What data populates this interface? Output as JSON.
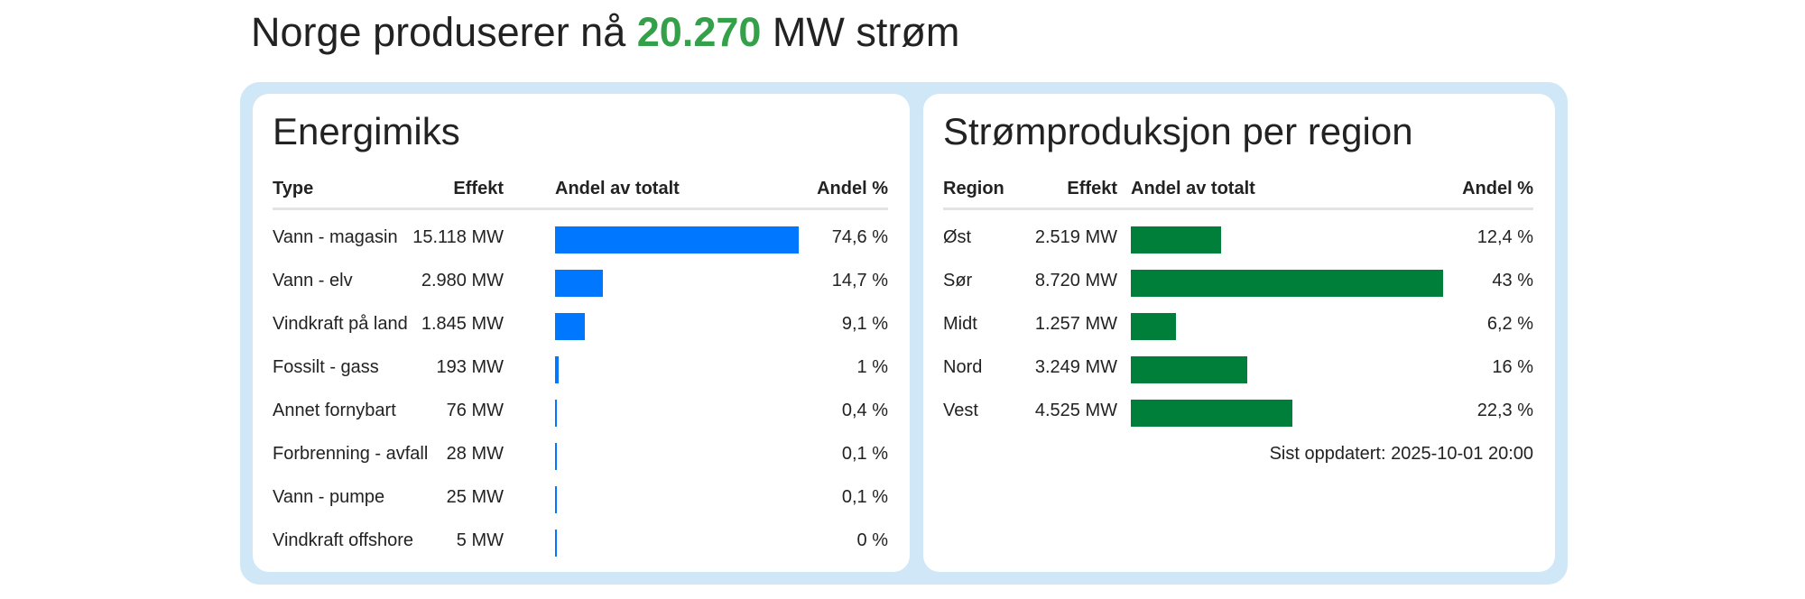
{
  "headline": {
    "prefix": "Norge produserer nå",
    "value": "20.270",
    "suffix": "MW strøm"
  },
  "colors": {
    "energy_bar": "#0077ff",
    "region_bar": "#007f3a",
    "headline_value": "#34a04a",
    "frame": "#cfe7f7"
  },
  "energimiks": {
    "title": "Energimiks",
    "columns": [
      "Type",
      "Effekt",
      "Andel av totalt",
      "Andel %"
    ],
    "rows": [
      {
        "type": "Vann - magasin",
        "effekt": "15.118 MW",
        "andel": "74,6 %"
      },
      {
        "type": "Vann - elv",
        "effekt": "2.980 MW",
        "andel": "14,7 %"
      },
      {
        "type": "Vindkraft på land",
        "effekt": "1.845 MW",
        "andel": "9,1 %"
      },
      {
        "type": "Fossilt - gass",
        "effekt": "193 MW",
        "andel": "1 %"
      },
      {
        "type": "Annet fornybart",
        "effekt": "76 MW",
        "andel": "0,4 %"
      },
      {
        "type": "Forbrenning - avfall",
        "effekt": "28 MW",
        "andel": "0,1 %"
      },
      {
        "type": "Vann - pumpe",
        "effekt": "25 MW",
        "andel": "0,1 %"
      },
      {
        "type": "Vindkraft offshore",
        "effekt": "5 MW",
        "andel": "0 %"
      }
    ]
  },
  "region": {
    "title": "Strømproduksjon per region",
    "columns": [
      "Region",
      "Effekt",
      "Andel av totalt",
      "Andel %"
    ],
    "rows": [
      {
        "type": "Øst",
        "effekt": "2.519 MW",
        "andel": "12,4 %"
      },
      {
        "type": "Sør",
        "effekt": "8.720 MW",
        "andel": "43 %"
      },
      {
        "type": "Midt",
        "effekt": "1.257 MW",
        "andel": "6,2 %"
      },
      {
        "type": "Nord",
        "effekt": "3.249 MW",
        "andel": "16 %"
      },
      {
        "type": "Vest",
        "effekt": "4.525 MW",
        "andel": "22,3 %"
      }
    ],
    "updated": "Sist oppdatert: 2025-10-01 20:00"
  },
  "chart_data": [
    {
      "type": "bar",
      "title": "Energimiks",
      "categories": [
        "Vann - magasin",
        "Vann - elv",
        "Vindkraft på land",
        "Fossilt - gass",
        "Annet fornybart",
        "Forbrenning - avfall",
        "Vann - pumpe",
        "Vindkraft offshore"
      ],
      "values": [
        74.6,
        14.7,
        9.1,
        1,
        0.4,
        0.1,
        0.1,
        0
      ],
      "effekt_mw": [
        15118,
        2980,
        1845,
        193,
        76,
        28,
        25,
        5
      ],
      "orientation": "horizontal"
    },
    {
      "type": "bar",
      "title": "Strømproduksjon per region",
      "categories": [
        "Øst",
        "Sør",
        "Midt",
        "Nord",
        "Vest"
      ],
      "values": [
        12.4,
        43,
        6.2,
        16,
        22.3
      ],
      "effekt_mw": [
        2519,
        8720,
        1257,
        3249,
        4525
      ],
      "orientation": "horizontal"
    }
  ]
}
